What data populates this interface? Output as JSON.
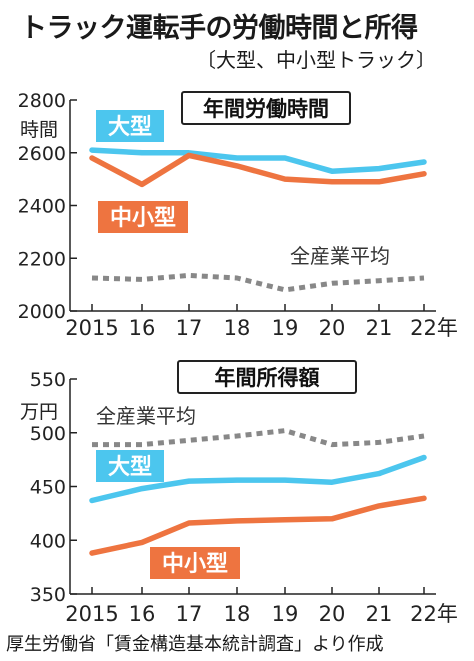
{
  "header": {
    "title": "トラック運転手の労働時間と所得",
    "subtitle": "〔大型、中小型トラック〕"
  },
  "footer": {
    "source": "厚生労働省「賃金構造基本統計調査」より作成"
  },
  "colors": {
    "large": "#4cc6ee",
    "small": "#ee7440",
    "all": "#888888",
    "axis": "#222222"
  },
  "chart_data": [
    {
      "type": "line",
      "title": "年間労働時間",
      "ylabel": "時間",
      "ylim": [
        2000,
        2800
      ],
      "yticks": [
        "2000",
        "2200",
        "2400",
        "2600",
        "2800"
      ],
      "x": [
        "2015",
        "16",
        "17",
        "18",
        "19",
        "20",
        "21",
        "22年"
      ],
      "series": [
        {
          "name": "大型",
          "values": [
            2610,
            2600,
            2600,
            2580,
            2580,
            2530,
            2540,
            2565
          ]
        },
        {
          "name": "中小型",
          "values": [
            2580,
            2480,
            2590,
            2550,
            2500,
            2490,
            2490,
            2520
          ]
        },
        {
          "name": "全産業平均",
          "values": [
            2125,
            2120,
            2135,
            2125,
            2080,
            2105,
            2115,
            2125
          ]
        }
      ]
    },
    {
      "type": "line",
      "title": "年間所得額",
      "ylabel": "万円",
      "ylim": [
        350,
        550
      ],
      "yticks": [
        "350",
        "400",
        "450",
        "500",
        "550"
      ],
      "x": [
        "2015",
        "16",
        "17",
        "18",
        "19",
        "20",
        "21",
        "22年"
      ],
      "series": [
        {
          "name": "大型",
          "values": [
            437,
            448,
            455,
            456,
            456,
            454,
            462,
            477
          ]
        },
        {
          "name": "中小型",
          "values": [
            388,
            398,
            416,
            418,
            419,
            420,
            432,
            439
          ]
        },
        {
          "name": "全産業平均",
          "values": [
            489,
            489,
            493,
            497,
            502,
            489,
            491,
            497
          ]
        }
      ]
    }
  ]
}
